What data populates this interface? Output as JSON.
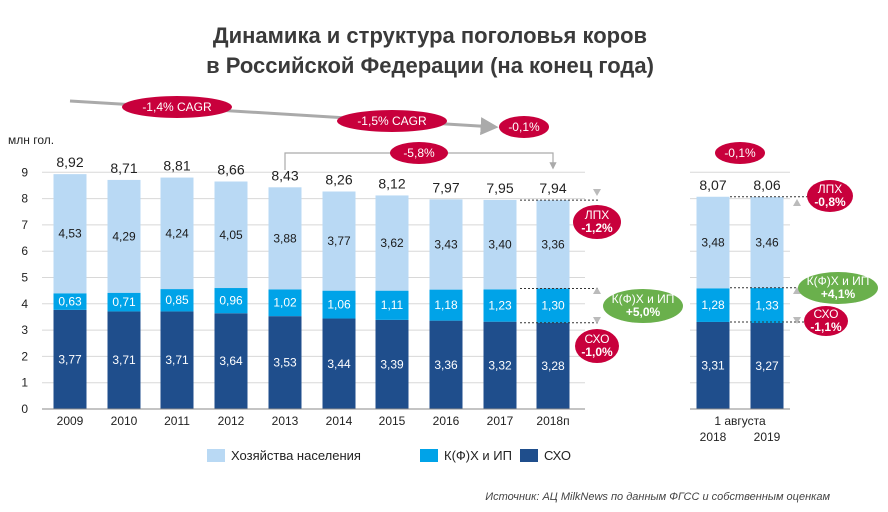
{
  "chart_data": {
    "type": "bar",
    "stacked": true,
    "title": [
      "Динамика и структура поголовья коров",
      "в Российской Федерации (на конец года)"
    ],
    "ylabel": "млн гол.",
    "ylim": [
      0,
      9
    ],
    "yticks": [
      0,
      1,
      2,
      3,
      4,
      5,
      6,
      7,
      8,
      9
    ],
    "categories": [
      "2009",
      "2010",
      "2011",
      "2012",
      "2013",
      "2014",
      "2015",
      "2016",
      "2017",
      "2018п",
      "2018",
      "2019"
    ],
    "group_label": "1 августа",
    "totals": [
      "8,92",
      "8,71",
      "8,81",
      "8,66",
      "8,43",
      "8,26",
      "8,12",
      "7,97",
      "7,95",
      "7,94",
      "8,07",
      "8,06"
    ],
    "series": [
      {
        "name": "СХО",
        "color": "#1f4e8c",
        "values": [
          3.77,
          3.71,
          3.71,
          3.64,
          3.53,
          3.44,
          3.39,
          3.36,
          3.32,
          3.28,
          3.31,
          3.27
        ],
        "labels": [
          "3,77",
          "3,71",
          "3,71",
          "3,64",
          "3,53",
          "3,44",
          "3,39",
          "3,36",
          "3,32",
          "3,28",
          "3,31",
          "3,27"
        ]
      },
      {
        "name": "К(Ф)Х и ИП",
        "color": "#00a3e8",
        "values": [
          0.63,
          0.71,
          0.85,
          0.96,
          1.02,
          1.06,
          1.11,
          1.18,
          1.23,
          1.3,
          1.28,
          1.33
        ],
        "labels": [
          "0,63",
          "0,71",
          "0,85",
          "0,96",
          "1,02",
          "1,06",
          "1,11",
          "1,18",
          "1,23",
          "1,30",
          "1,28",
          "1,33"
        ]
      },
      {
        "name": "Хозяйства населения",
        "color": "#b9d9f4",
        "values": [
          4.53,
          4.29,
          4.24,
          4.05,
          3.88,
          3.77,
          3.62,
          3.43,
          3.4,
          3.36,
          3.48,
          3.46
        ],
        "labels": [
          "4,53",
          "4,29",
          "4,24",
          "4,05",
          "3,88",
          "3,77",
          "3,62",
          "3,43",
          "3,40",
          "3,36",
          "3,48",
          "3,46"
        ]
      }
    ],
    "legend_order": [
      "Хозяйства населения",
      "К(Ф)Х и ИП",
      "СХО"
    ],
    "legend_position": "bottom",
    "annotations": {
      "cagr_1": "-1,4% CAGR",
      "cagr_2": "-1,5% CAGR",
      "change_2017_2018": "-0,1%",
      "change_2013_2018": "-5,8%",
      "change_aug": "-0,1%",
      "lph_2018": [
        "ЛПХ",
        "-1,2%"
      ],
      "kfh_2018": [
        "К(Ф)Х и ИП",
        "+5,0%"
      ],
      "sho_2018": [
        "СХО",
        "-1,0%"
      ],
      "lph_aug": [
        "ЛПХ",
        "-0,8%"
      ],
      "kfh_aug": [
        "К(Ф)Х и ИП",
        "+4,1%"
      ],
      "sho_aug": [
        "СХО",
        "-1,1%"
      ]
    },
    "colors": {
      "pill_red": "#c8003c",
      "pill_green": "#6ab04c",
      "arrow_grey": "#aaaaaa",
      "grid": "#d8d8d8"
    }
  },
  "source": "Источник: АЦ MilkNews по данным ФГСС и собственным оценкам"
}
